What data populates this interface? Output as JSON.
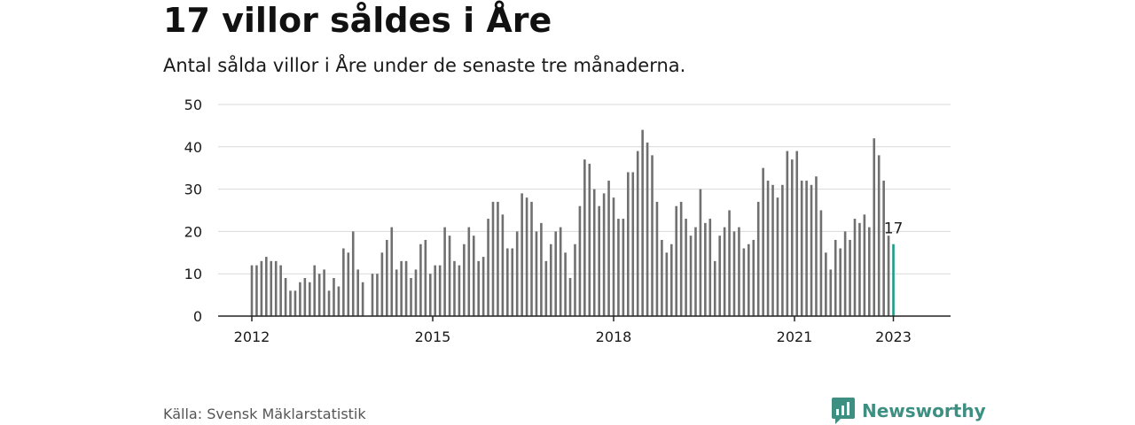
{
  "title": "17 villor såldes i Åre",
  "subtitle": "Antal sålda villor i Åre under de senaste tre månaderna.",
  "source": "Källa: Svensk Mäklarstatistik",
  "brand": "Newsworthy",
  "colors": {
    "bar": "#707070",
    "highlight": "#1a9e8a",
    "brand": "#3d8f82",
    "grid": "#d9d9d9"
  },
  "chart_data": {
    "type": "bar",
    "title": "17 villor såldes i Åre",
    "xlabel": "",
    "ylabel": "",
    "ylim": [
      0,
      50
    ],
    "yticks": [
      0,
      10,
      20,
      30,
      40,
      50
    ],
    "xticks": [
      "2012",
      "2015",
      "2018",
      "2021",
      "2023"
    ],
    "grid": true,
    "highlight_label": "17",
    "series": [
      {
        "values": [
          12,
          12,
          13,
          14,
          13,
          13,
          12,
          9,
          6,
          6,
          8,
          9,
          8,
          12,
          10,
          11,
          6,
          9,
          7,
          16,
          15,
          20,
          11,
          8,
          null,
          10,
          10,
          15,
          18,
          21,
          11,
          13,
          13,
          9,
          11,
          17,
          18,
          10,
          12,
          12,
          21,
          19,
          13,
          12,
          17,
          21,
          19,
          13,
          14,
          23,
          27,
          27,
          24,
          16,
          16,
          20,
          29,
          28,
          27,
          20,
          22,
          13,
          17,
          20,
          21,
          15,
          9,
          17,
          26,
          37,
          36,
          30,
          26,
          29,
          32,
          28,
          23,
          23,
          34,
          34,
          39,
          44,
          41,
          38,
          27,
          18,
          15,
          17,
          26,
          27,
          23,
          19,
          21,
          30,
          22,
          23,
          13,
          19,
          21,
          25,
          20,
          21,
          16,
          17,
          18,
          27,
          35,
          32,
          31,
          28,
          31,
          39,
          37,
          39,
          32,
          32,
          31,
          33,
          25,
          15,
          11,
          18,
          16,
          20,
          18,
          23,
          22,
          24,
          21,
          42,
          38,
          32,
          19,
          17
        ]
      }
    ]
  }
}
